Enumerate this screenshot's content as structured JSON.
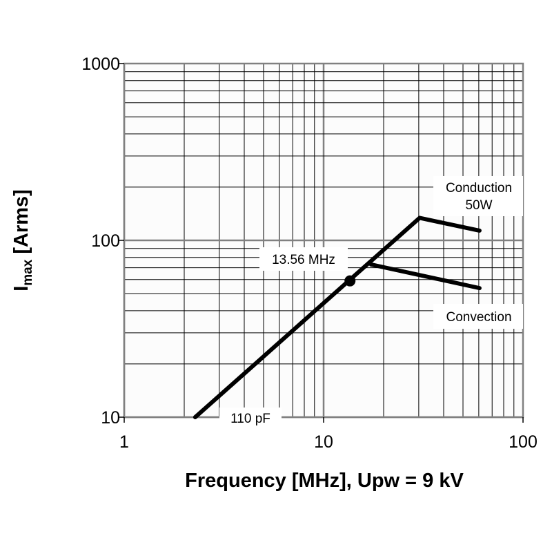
{
  "chart_data": {
    "type": "line",
    "xlabel": "Frequency [MHz], Upw = 9 kV",
    "ylabel_main": "I",
    "ylabel_sub": "max",
    "ylabel_rest": " [Arms]",
    "xscale": "log",
    "yscale": "log",
    "xlim": [
      1,
      100
    ],
    "ylim": [
      10,
      1000
    ],
    "x_ticks": [
      "1",
      "10",
      "100"
    ],
    "y_ticks": [
      "10",
      "100",
      "1000"
    ],
    "grid": true,
    "series": [
      {
        "id": "conduction",
        "points": [
          [
            2.27,
            10
          ],
          [
            30.3,
            134
          ],
          [
            60.5,
            113.5
          ]
        ]
      },
      {
        "id": "convection",
        "points": [
          [
            17.3,
            73
          ],
          [
            60.5,
            53.7
          ]
        ]
      }
    ],
    "marker": {
      "x": 13.56,
      "y": 59
    },
    "annotations": {
      "conduction_line1": "Conduction",
      "conduction_line2": "50W",
      "convection": "Convection",
      "frequency": "13.56 MHz",
      "capacitance": "110 pF"
    }
  }
}
